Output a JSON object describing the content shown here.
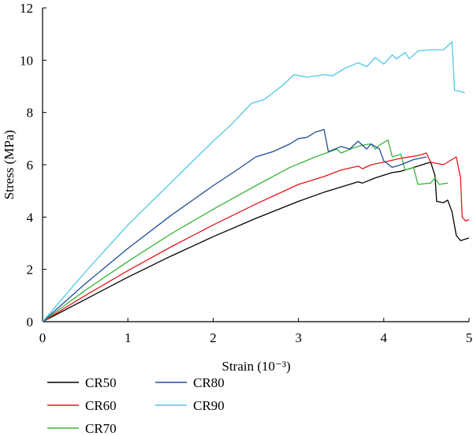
{
  "chart_data": {
    "type": "line",
    "xlabel": "Strain (10⁻³)",
    "ylabel": "Stress (MPa)",
    "xlim": [
      0,
      5
    ],
    "ylim": [
      0,
      12
    ],
    "xticks": [
      "0",
      "1",
      "2",
      "3",
      "4",
      "5"
    ],
    "yticks": [
      "0",
      "2",
      "4",
      "6",
      "8",
      "10",
      "12"
    ],
    "grid": false,
    "legend_position": "bottom",
    "series": [
      {
        "name": "CR50",
        "color": "#000000",
        "points": [
          [
            0,
            0
          ],
          [
            0.5,
            0.85
          ],
          [
            1,
            1.7
          ],
          [
            1.5,
            2.5
          ],
          [
            2,
            3.25
          ],
          [
            2.5,
            3.95
          ],
          [
            3,
            4.6
          ],
          [
            3.3,
            4.95
          ],
          [
            3.6,
            5.25
          ],
          [
            3.7,
            5.35
          ],
          [
            3.75,
            5.3
          ],
          [
            3.9,
            5.5
          ],
          [
            4.0,
            5.6
          ],
          [
            4.1,
            5.7
          ],
          [
            4.2,
            5.75
          ],
          [
            4.3,
            5.85
          ],
          [
            4.4,
            5.95
          ],
          [
            4.5,
            6.05
          ],
          [
            4.55,
            6.1
          ],
          [
            4.6,
            5.6
          ],
          [
            4.62,
            4.6
          ],
          [
            4.7,
            4.55
          ],
          [
            4.75,
            4.65
          ],
          [
            4.8,
            4.2
          ],
          [
            4.85,
            3.3
          ],
          [
            4.9,
            3.1
          ],
          [
            4.95,
            3.15
          ],
          [
            5.0,
            3.2
          ]
        ]
      },
      {
        "name": "CR60",
        "color": "#e8161c",
        "points": [
          [
            0,
            0
          ],
          [
            0.5,
            1.0
          ],
          [
            1,
            1.95
          ],
          [
            1.5,
            2.85
          ],
          [
            2,
            3.7
          ],
          [
            2.5,
            4.5
          ],
          [
            3,
            5.25
          ],
          [
            3.3,
            5.55
          ],
          [
            3.5,
            5.8
          ],
          [
            3.7,
            5.95
          ],
          [
            3.75,
            5.85
          ],
          [
            3.85,
            6.0
          ],
          [
            4.0,
            6.1
          ],
          [
            4.2,
            6.25
          ],
          [
            4.4,
            6.35
          ],
          [
            4.5,
            6.45
          ],
          [
            4.55,
            6.1
          ],
          [
            4.7,
            6.0
          ],
          [
            4.85,
            6.3
          ],
          [
            4.9,
            5.5
          ],
          [
            4.92,
            4.0
          ],
          [
            4.96,
            3.85
          ],
          [
            5.0,
            3.9
          ]
        ]
      },
      {
        "name": "CR70",
        "color": "#3ab53a",
        "points": [
          [
            0,
            0
          ],
          [
            0.5,
            1.2
          ],
          [
            1,
            2.3
          ],
          [
            1.5,
            3.35
          ],
          [
            2,
            4.3
          ],
          [
            2.5,
            5.2
          ],
          [
            2.9,
            5.9
          ],
          [
            3.2,
            6.3
          ],
          [
            3.45,
            6.6
          ],
          [
            3.5,
            6.45
          ],
          [
            3.65,
            6.65
          ],
          [
            3.75,
            6.75
          ],
          [
            3.85,
            6.8
          ],
          [
            3.9,
            6.6
          ],
          [
            3.95,
            6.75
          ],
          [
            4.05,
            6.95
          ],
          [
            4.1,
            6.3
          ],
          [
            4.2,
            6.4
          ],
          [
            4.25,
            5.8
          ],
          [
            4.35,
            5.9
          ],
          [
            4.4,
            5.25
          ],
          [
            4.55,
            5.3
          ],
          [
            4.6,
            5.5
          ],
          [
            4.65,
            5.25
          ],
          [
            4.75,
            5.3
          ]
        ]
      },
      {
        "name": "CR80",
        "color": "#1f4e9c",
        "points": [
          [
            0,
            0
          ],
          [
            0.5,
            1.45
          ],
          [
            1,
            2.8
          ],
          [
            1.5,
            4.05
          ],
          [
            2,
            5.2
          ],
          [
            2.3,
            5.85
          ],
          [
            2.5,
            6.3
          ],
          [
            2.7,
            6.5
          ],
          [
            2.9,
            6.8
          ],
          [
            3.0,
            7.0
          ],
          [
            3.1,
            7.05
          ],
          [
            3.2,
            7.25
          ],
          [
            3.3,
            7.35
          ],
          [
            3.35,
            6.5
          ],
          [
            3.5,
            6.7
          ],
          [
            3.6,
            6.6
          ],
          [
            3.7,
            6.9
          ],
          [
            3.8,
            6.6
          ],
          [
            3.85,
            6.8
          ],
          [
            3.95,
            6.6
          ],
          [
            4.0,
            6.15
          ],
          [
            4.1,
            5.9
          ],
          [
            4.2,
            6.0
          ],
          [
            4.35,
            6.2
          ],
          [
            4.5,
            6.3
          ]
        ]
      },
      {
        "name": "CR90",
        "color": "#4fc8e8",
        "points": [
          [
            0,
            0
          ],
          [
            0.5,
            1.9
          ],
          [
            1,
            3.7
          ],
          [
            1.5,
            5.3
          ],
          [
            2,
            6.9
          ],
          [
            2.2,
            7.5
          ],
          [
            2.45,
            8.35
          ],
          [
            2.6,
            8.5
          ],
          [
            2.8,
            9.0
          ],
          [
            2.95,
            9.45
          ],
          [
            3.1,
            9.35
          ],
          [
            3.3,
            9.45
          ],
          [
            3.4,
            9.4
          ],
          [
            3.55,
            9.7
          ],
          [
            3.7,
            9.9
          ],
          [
            3.8,
            9.75
          ],
          [
            3.9,
            10.1
          ],
          [
            4.0,
            9.85
          ],
          [
            4.1,
            10.2
          ],
          [
            4.15,
            10.05
          ],
          [
            4.25,
            10.3
          ],
          [
            4.3,
            10.05
          ],
          [
            4.4,
            10.35
          ],
          [
            4.55,
            10.4
          ],
          [
            4.7,
            10.4
          ],
          [
            4.8,
            10.7
          ],
          [
            4.83,
            8.85
          ],
          [
            4.9,
            8.8
          ],
          [
            4.95,
            8.75
          ]
        ]
      }
    ]
  }
}
